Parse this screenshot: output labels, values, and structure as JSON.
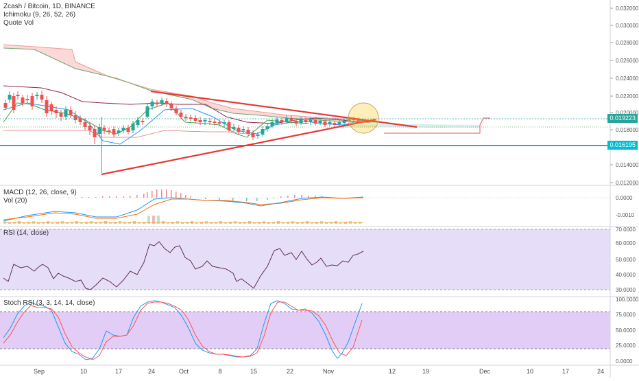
{
  "header": {
    "symbol_line": "Zcash / Bitcoin, 1D, BINANCE",
    "ichimoku_label": "Ichimoku (9, 26, 52, 26)",
    "quotevol_label": "Quote Vol"
  },
  "price_axis": {
    "ticks": [
      "0.032000",
      "0.030000",
      "0.028000",
      "0.026000",
      "0.024000",
      "0.022000",
      "0.020000",
      "0.018000",
      "0.014000",
      "0.012000"
    ],
    "current_price": "0.019223",
    "current_price_color": "#26a69a",
    "support_price": "0.016195",
    "support_color": "#00bcd4"
  },
  "macd": {
    "label": "MACD (12, 26, close, 9)",
    "ticks": [
      "0.0000",
      "-0.0010"
    ]
  },
  "vol": {
    "label": "Vol (20)"
  },
  "rsi": {
    "label": "RSI (14, close)",
    "ticks": [
      "70.0000",
      "60.0000",
      "50.0000",
      "40.0000",
      "30.0000"
    ]
  },
  "stoch": {
    "label": "Stoch RSI (3, 3, 14, 14, close)",
    "ticks": [
      "100.0000",
      "75.0000",
      "50.0000",
      "25.0000",
      "0.0000"
    ]
  },
  "time_axis": {
    "labels": [
      "Sep",
      "10",
      "17",
      "24",
      "Oct",
      "8",
      "15",
      "22",
      "Nov",
      "12",
      "19",
      "Dec",
      "10",
      "17",
      "24"
    ]
  },
  "colors": {
    "up": "#26a69a",
    "down": "#ef5350",
    "trendline": "#e53935",
    "rsi_band": "#e6ddf9",
    "stoch_band": "#e2cdf7",
    "macd": "#2196f3",
    "signal": "#ff6d00"
  }
}
